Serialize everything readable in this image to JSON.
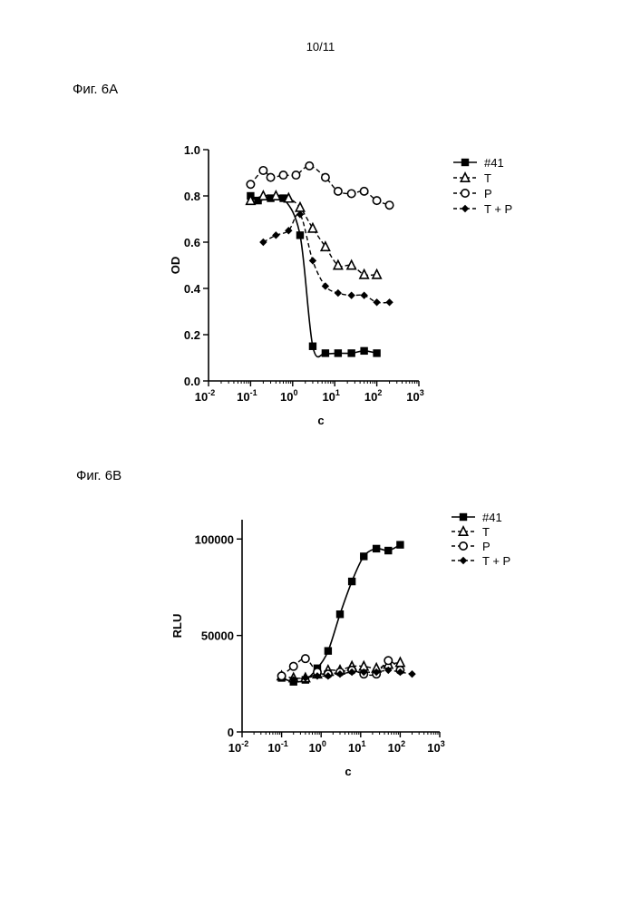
{
  "page_number": "10/11",
  "figures": {
    "a_label": "Фиг. 6A",
    "b_label": "Фиг. 6B"
  },
  "chart_data": [
    {
      "type": "scatter",
      "xscale": "log",
      "xlim": [
        0.01,
        1000
      ],
      "ylim": [
        0.0,
        1.0
      ],
      "xlabel": "c",
      "ylabel": "OD",
      "x_ticks": [
        "10",
        "10",
        "10",
        "10",
        "10",
        "10"
      ],
      "x_tick_exponents": [
        "-2",
        "-1",
        "0",
        "1",
        "2",
        "3"
      ],
      "y_ticks": [
        "0.0",
        "0.2",
        "0.4",
        "0.6",
        "0.8",
        "1.0"
      ],
      "legend_position": "right",
      "series": [
        {
          "name": "#41",
          "marker": "square",
          "line": "solid",
          "x": [
            0.1,
            0.15,
            0.3,
            0.6,
            1.5,
            3,
            6,
            12,
            25,
            50,
            100
          ],
          "y": [
            0.8,
            0.78,
            0.79,
            0.79,
            0.63,
            0.15,
            0.12,
            0.12,
            0.12,
            0.13,
            0.12
          ]
        },
        {
          "name": "T",
          "marker": "triangle",
          "line": "dashed",
          "x": [
            0.1,
            0.2,
            0.4,
            0.8,
            1.5,
            3,
            6,
            12,
            25,
            50,
            100
          ],
          "y": [
            0.78,
            0.8,
            0.8,
            0.79,
            0.75,
            0.66,
            0.58,
            0.5,
            0.5,
            0.46,
            0.46
          ]
        },
        {
          "name": "P",
          "marker": "circle",
          "line": "dashed",
          "x": [
            0.1,
            0.2,
            0.3,
            0.6,
            1.2,
            2.5,
            6,
            12,
            25,
            50,
            100,
            200
          ],
          "y": [
            0.85,
            0.91,
            0.88,
            0.89,
            0.89,
            0.93,
            0.88,
            0.82,
            0.81,
            0.82,
            0.78,
            0.76
          ]
        },
        {
          "name": "T + P",
          "marker": "diamond",
          "line": "dashed",
          "x": [
            0.2,
            0.4,
            0.8,
            1.5,
            3,
            6,
            12,
            25,
            50,
            100,
            200
          ],
          "y": [
            0.6,
            0.63,
            0.65,
            0.72,
            0.52,
            0.41,
            0.38,
            0.37,
            0.37,
            0.34,
            0.34
          ]
        }
      ]
    },
    {
      "type": "scatter",
      "xscale": "log",
      "xlim": [
        0.01,
        1000
      ],
      "ylim": [
        0,
        110000
      ],
      "xlabel": "c",
      "ylabel": "RLU",
      "x_ticks": [
        "10",
        "10",
        "10",
        "10",
        "10",
        "10"
      ],
      "x_tick_exponents": [
        "-2",
        "-1",
        "0",
        "1",
        "2",
        "3"
      ],
      "y_ticks": [
        "0",
        "50000",
        "100000"
      ],
      "legend_position": "right",
      "series": [
        {
          "name": "#41",
          "marker": "square",
          "line": "solid",
          "x": [
            0.1,
            0.2,
            0.4,
            0.8,
            1.5,
            3,
            6,
            12,
            25,
            50,
            100
          ],
          "y": [
            28000,
            26000,
            27000,
            33000,
            42000,
            61000,
            78000,
            91000,
            95000,
            94000,
            97000
          ]
        },
        {
          "name": "T",
          "marker": "triangle",
          "line": "dashed",
          "x": [
            0.1,
            0.2,
            0.4,
            0.8,
            1.5,
            3,
            6,
            12,
            25,
            50,
            100
          ],
          "y": [
            29000,
            28000,
            28000,
            30000,
            32000,
            32000,
            34000,
            34000,
            33000,
            35000,
            36000
          ]
        },
        {
          "name": "P",
          "marker": "circle",
          "line": "dashed",
          "x": [
            0.1,
            0.2,
            0.4,
            0.8,
            1.5,
            3,
            6,
            12,
            25,
            50,
            100
          ],
          "y": [
            29000,
            34000,
            38000,
            31000,
            30000,
            31000,
            32000,
            30000,
            30000,
            37000,
            32000
          ]
        },
        {
          "name": "T + P",
          "marker": "diamond",
          "line": "dashed",
          "x": [
            0.2,
            0.4,
            0.8,
            1.5,
            3,
            6,
            12,
            25,
            50,
            100,
            200
          ],
          "y": [
            27000,
            28000,
            29000,
            29000,
            30000,
            31000,
            31000,
            31000,
            32000,
            31000,
            30000
          ]
        }
      ]
    }
  ]
}
